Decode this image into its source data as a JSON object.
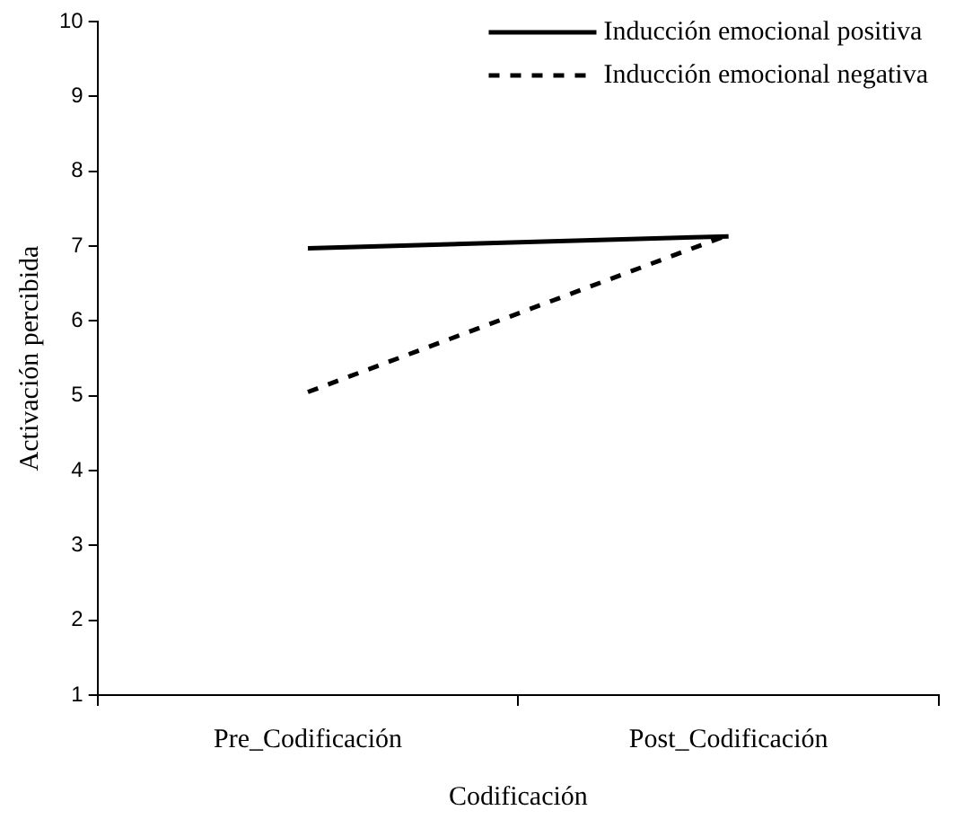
{
  "chart_data": {
    "type": "line",
    "xlabel": "Codificación",
    "ylabel": "Activación percibida",
    "categories": [
      "Pre_Codificación",
      "Post_Codificación"
    ],
    "series": [
      {
        "name": "Inducción emocional positiva",
        "color": "#000000",
        "line_style": "solid",
        "values": [
          6.97,
          7.13
        ]
      },
      {
        "name": "Inducción emocional negativa",
        "color": "#000000",
        "line_style": "dashed",
        "values": [
          5.05,
          7.15
        ]
      }
    ],
    "ylim": [
      1,
      10
    ],
    "yticks": [
      1,
      2,
      3,
      4,
      5,
      6,
      7,
      8,
      9,
      10
    ],
    "grid": false,
    "legend": "top right",
    "marker": "none"
  }
}
